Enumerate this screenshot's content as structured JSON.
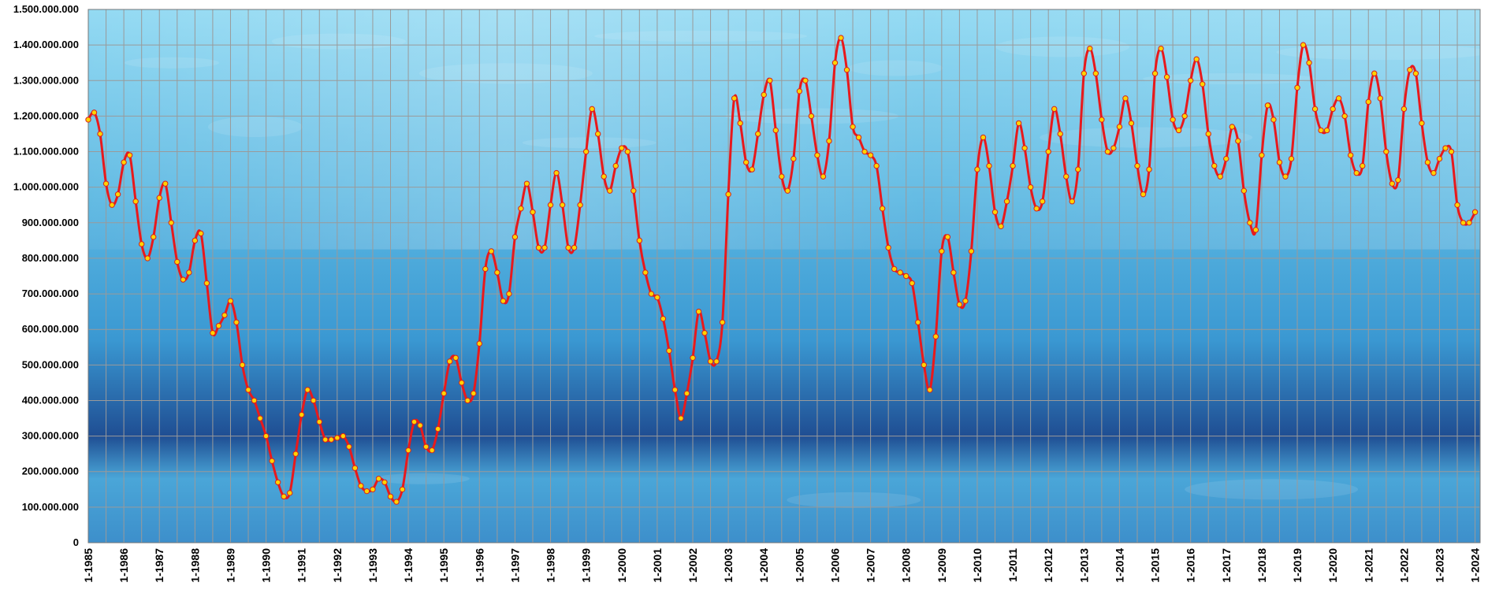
{
  "chart_data": {
    "type": "line",
    "title": "",
    "xlabel": "",
    "ylabel": "",
    "ylim": [
      0,
      1500000000
    ],
    "y_tick_values": [
      0,
      100000000,
      200000000,
      300000000,
      400000000,
      500000000,
      600000000,
      700000000,
      800000000,
      900000000,
      1000000000,
      1100000000,
      1200000000,
      1300000000,
      1400000000,
      1500000000
    ],
    "y_tick_labels": [
      "0",
      "100.000.000",
      "200.000.000",
      "300.000.000",
      "400.000.000",
      "500.000.000",
      "600.000.000",
      "700.000.000",
      "800.000.000",
      "900.000.000",
      "1.000.000.000",
      "1.100.000.000",
      "1.200.000.000",
      "1.300.000.000",
      "1.400.000.000",
      "1.500.000.000"
    ],
    "x_start": "1-1985",
    "x_end": "1-2024",
    "x_tick_labels": [
      "1-1985",
      "1-1986",
      "1-1987",
      "1-1988",
      "1-1989",
      "1-1990",
      "1-1991",
      "1-1992",
      "1-1993",
      "1-1994",
      "1-1995",
      "1-1996",
      "1-1997",
      "1-1998",
      "1-1999",
      "1-2000",
      "1-2001",
      "1-2002",
      "1-2003",
      "1-2004",
      "1-2005",
      "1-2006",
      "1-2007",
      "1-2008",
      "1-2009",
      "1-2010",
      "1-2011",
      "1-2012",
      "1-2013",
      "1-2014",
      "1-2015",
      "1-2016",
      "1-2017",
      "1-2018",
      "1-2019",
      "1-2020",
      "1-2021",
      "1-2022",
      "1-2023",
      "1-2024"
    ],
    "grid": true,
    "legend": "none",
    "colors": {
      "line": "#e8191c",
      "marker_fill": "#ffd400",
      "marker_stroke": "#d8201c",
      "grid": "#9a9a9a",
      "water_light": "#8ed8f2",
      "water_mid": "#3a98d2",
      "water_deep": "#1f4e93"
    },
    "series": [
      {
        "name": "",
        "points": [
          [
            "1-1985",
            1190000000
          ],
          [
            "3-1985",
            1210000000
          ],
          [
            "5-1985",
            1150000000
          ],
          [
            "7-1985",
            1010000000
          ],
          [
            "9-1985",
            950000000
          ],
          [
            "11-1985",
            980000000
          ],
          [
            "1-1986",
            1070000000
          ],
          [
            "3-1986",
            1090000000
          ],
          [
            "5-1986",
            960000000
          ],
          [
            "7-1986",
            840000000
          ],
          [
            "9-1986",
            800000000
          ],
          [
            "11-1986",
            860000000
          ],
          [
            "1-1987",
            970000000
          ],
          [
            "3-1987",
            1010000000
          ],
          [
            "5-1987",
            900000000
          ],
          [
            "7-1987",
            790000000
          ],
          [
            "9-1987",
            740000000
          ],
          [
            "11-1987",
            760000000
          ],
          [
            "1-1988",
            850000000
          ],
          [
            "3-1988",
            870000000
          ],
          [
            "5-1988",
            730000000
          ],
          [
            "7-1988",
            590000000
          ],
          [
            "9-1988",
            610000000
          ],
          [
            "11-1988",
            640000000
          ],
          [
            "1-1989",
            680000000
          ],
          [
            "3-1989",
            620000000
          ],
          [
            "5-1989",
            500000000
          ],
          [
            "7-1989",
            430000000
          ],
          [
            "9-1989",
            400000000
          ],
          [
            "11-1989",
            350000000
          ],
          [
            "1-1990",
            300000000
          ],
          [
            "3-1990",
            230000000
          ],
          [
            "5-1990",
            170000000
          ],
          [
            "7-1990",
            130000000
          ],
          [
            "9-1990",
            140000000
          ],
          [
            "11-1990",
            250000000
          ],
          [
            "1-1991",
            360000000
          ],
          [
            "3-1991",
            430000000
          ],
          [
            "5-1991",
            400000000
          ],
          [
            "7-1991",
            340000000
          ],
          [
            "9-1991",
            290000000
          ],
          [
            "11-1991",
            290000000
          ],
          [
            "1-1992",
            295000000
          ],
          [
            "3-1992",
            300000000
          ],
          [
            "5-1992",
            270000000
          ],
          [
            "7-1992",
            210000000
          ],
          [
            "9-1992",
            160000000
          ],
          [
            "11-1992",
            145000000
          ],
          [
            "1-1993",
            150000000
          ],
          [
            "3-1993",
            180000000
          ],
          [
            "5-1993",
            170000000
          ],
          [
            "7-1993",
            130000000
          ],
          [
            "9-1993",
            115000000
          ],
          [
            "11-1993",
            150000000
          ],
          [
            "1-1994",
            260000000
          ],
          [
            "3-1994",
            340000000
          ],
          [
            "5-1994",
            330000000
          ],
          [
            "7-1994",
            270000000
          ],
          [
            "9-1994",
            260000000
          ],
          [
            "11-1994",
            320000000
          ],
          [
            "1-1995",
            420000000
          ],
          [
            "3-1995",
            510000000
          ],
          [
            "5-1995",
            520000000
          ],
          [
            "7-1995",
            450000000
          ],
          [
            "9-1995",
            400000000
          ],
          [
            "11-1995",
            420000000
          ],
          [
            "1-1996",
            560000000
          ],
          [
            "3-1996",
            770000000
          ],
          [
            "5-1996",
            820000000
          ],
          [
            "7-1996",
            760000000
          ],
          [
            "9-1996",
            680000000
          ],
          [
            "11-1996",
            700000000
          ],
          [
            "1-1997",
            860000000
          ],
          [
            "3-1997",
            940000000
          ],
          [
            "5-1997",
            1010000000
          ],
          [
            "7-1997",
            930000000
          ],
          [
            "9-1997",
            830000000
          ],
          [
            "11-1997",
            830000000
          ],
          [
            "1-1998",
            950000000
          ],
          [
            "3-1998",
            1040000000
          ],
          [
            "5-1998",
            950000000
          ],
          [
            "7-1998",
            830000000
          ],
          [
            "9-1998",
            830000000
          ],
          [
            "11-1998",
            950000000
          ],
          [
            "1-1999",
            1100000000
          ],
          [
            "3-1999",
            1220000000
          ],
          [
            "5-1999",
            1150000000
          ],
          [
            "7-1999",
            1030000000
          ],
          [
            "9-1999",
            990000000
          ],
          [
            "11-1999",
            1060000000
          ],
          [
            "1-2000",
            1110000000
          ],
          [
            "3-2000",
            1100000000
          ],
          [
            "5-2000",
            990000000
          ],
          [
            "7-2000",
            850000000
          ],
          [
            "9-2000",
            760000000
          ],
          [
            "11-2000",
            700000000
          ],
          [
            "1-2001",
            690000000
          ],
          [
            "3-2001",
            630000000
          ],
          [
            "5-2001",
            540000000
          ],
          [
            "7-2001",
            430000000
          ],
          [
            "9-2001",
            350000000
          ],
          [
            "11-2001",
            420000000
          ],
          [
            "1-2002",
            520000000
          ],
          [
            "3-2002",
            650000000
          ],
          [
            "5-2002",
            590000000
          ],
          [
            "7-2002",
            510000000
          ],
          [
            "9-2002",
            510000000
          ],
          [
            "11-2002",
            620000000
          ],
          [
            "1-2003",
            980000000
          ],
          [
            "3-2003",
            1250000000
          ],
          [
            "5-2003",
            1180000000
          ],
          [
            "7-2003",
            1070000000
          ],
          [
            "9-2003",
            1050000000
          ],
          [
            "11-2003",
            1150000000
          ],
          [
            "1-2004",
            1260000000
          ],
          [
            "3-2004",
            1300000000
          ],
          [
            "5-2004",
            1160000000
          ],
          [
            "7-2004",
            1030000000
          ],
          [
            "9-2004",
            990000000
          ],
          [
            "11-2004",
            1080000000
          ],
          [
            "1-2005",
            1270000000
          ],
          [
            "3-2005",
            1300000000
          ],
          [
            "5-2005",
            1200000000
          ],
          [
            "7-2005",
            1090000000
          ],
          [
            "9-2005",
            1030000000
          ],
          [
            "11-2005",
            1130000000
          ],
          [
            "1-2006",
            1350000000
          ],
          [
            "3-2006",
            1420000000
          ],
          [
            "5-2006",
            1330000000
          ],
          [
            "7-2006",
            1170000000
          ],
          [
            "9-2006",
            1140000000
          ],
          [
            "11-2006",
            1100000000
          ],
          [
            "1-2007",
            1090000000
          ],
          [
            "3-2007",
            1060000000
          ],
          [
            "5-2007",
            940000000
          ],
          [
            "7-2007",
            830000000
          ],
          [
            "9-2007",
            770000000
          ],
          [
            "11-2007",
            760000000
          ],
          [
            "1-2008",
            750000000
          ],
          [
            "3-2008",
            730000000
          ],
          [
            "5-2008",
            620000000
          ],
          [
            "7-2008",
            500000000
          ],
          [
            "9-2008",
            430000000
          ],
          [
            "11-2008",
            580000000
          ],
          [
            "1-2009",
            820000000
          ],
          [
            "3-2009",
            860000000
          ],
          [
            "5-2009",
            760000000
          ],
          [
            "7-2009",
            670000000
          ],
          [
            "9-2009",
            680000000
          ],
          [
            "11-2009",
            820000000
          ],
          [
            "1-2010",
            1050000000
          ],
          [
            "3-2010",
            1140000000
          ],
          [
            "5-2010",
            1060000000
          ],
          [
            "7-2010",
            930000000
          ],
          [
            "9-2010",
            890000000
          ],
          [
            "11-2010",
            960000000
          ],
          [
            "1-2011",
            1060000000
          ],
          [
            "3-2011",
            1180000000
          ],
          [
            "5-2011",
            1110000000
          ],
          [
            "7-2011",
            1000000000
          ],
          [
            "9-2011",
            940000000
          ],
          [
            "11-2011",
            960000000
          ],
          [
            "1-2012",
            1100000000
          ],
          [
            "3-2012",
            1220000000
          ],
          [
            "5-2012",
            1150000000
          ],
          [
            "7-2012",
            1030000000
          ],
          [
            "9-2012",
            960000000
          ],
          [
            "11-2012",
            1050000000
          ],
          [
            "1-2013",
            1320000000
          ],
          [
            "3-2013",
            1390000000
          ],
          [
            "5-2013",
            1320000000
          ],
          [
            "7-2013",
            1190000000
          ],
          [
            "9-2013",
            1100000000
          ],
          [
            "11-2013",
            1110000000
          ],
          [
            "1-2014",
            1170000000
          ],
          [
            "3-2014",
            1250000000
          ],
          [
            "5-2014",
            1180000000
          ],
          [
            "7-2014",
            1060000000
          ],
          [
            "9-2014",
            980000000
          ],
          [
            "11-2014",
            1050000000
          ],
          [
            "1-2015",
            1320000000
          ],
          [
            "3-2015",
            1390000000
          ],
          [
            "5-2015",
            1310000000
          ],
          [
            "7-2015",
            1190000000
          ],
          [
            "9-2015",
            1160000000
          ],
          [
            "11-2015",
            1200000000
          ],
          [
            "1-2016",
            1300000000
          ],
          [
            "3-2016",
            1360000000
          ],
          [
            "5-2016",
            1290000000
          ],
          [
            "7-2016",
            1150000000
          ],
          [
            "9-2016",
            1060000000
          ],
          [
            "11-2016",
            1030000000
          ],
          [
            "1-2017",
            1080000000
          ],
          [
            "3-2017",
            1170000000
          ],
          [
            "5-2017",
            1130000000
          ],
          [
            "7-2017",
            990000000
          ],
          [
            "9-2017",
            900000000
          ],
          [
            "11-2017",
            880000000
          ],
          [
            "1-2018",
            1090000000
          ],
          [
            "3-2018",
            1230000000
          ],
          [
            "5-2018",
            1190000000
          ],
          [
            "7-2018",
            1070000000
          ],
          [
            "9-2018",
            1030000000
          ],
          [
            "11-2018",
            1080000000
          ],
          [
            "1-2019",
            1280000000
          ],
          [
            "3-2019",
            1400000000
          ],
          [
            "5-2019",
            1350000000
          ],
          [
            "7-2019",
            1220000000
          ],
          [
            "9-2019",
            1160000000
          ],
          [
            "11-2019",
            1160000000
          ],
          [
            "1-2020",
            1220000000
          ],
          [
            "3-2020",
            1250000000
          ],
          [
            "5-2020",
            1200000000
          ],
          [
            "7-2020",
            1090000000
          ],
          [
            "9-2020",
            1040000000
          ],
          [
            "11-2020",
            1060000000
          ],
          [
            "1-2021",
            1240000000
          ],
          [
            "3-2021",
            1320000000
          ],
          [
            "5-2021",
            1250000000
          ],
          [
            "7-2021",
            1100000000
          ],
          [
            "9-2021",
            1010000000
          ],
          [
            "11-2021",
            1020000000
          ],
          [
            "1-2022",
            1220000000
          ],
          [
            "3-2022",
            1330000000
          ],
          [
            "5-2022",
            1320000000
          ],
          [
            "7-2022",
            1180000000
          ],
          [
            "9-2022",
            1070000000
          ],
          [
            "11-2022",
            1040000000
          ],
          [
            "1-2023",
            1080000000
          ],
          [
            "3-2023",
            1110000000
          ],
          [
            "5-2023",
            1100000000
          ],
          [
            "7-2023",
            950000000
          ],
          [
            "9-2023",
            900000000
          ],
          [
            "11-2023",
            900000000
          ],
          [
            "1-2024",
            930000000
          ]
        ]
      }
    ]
  }
}
